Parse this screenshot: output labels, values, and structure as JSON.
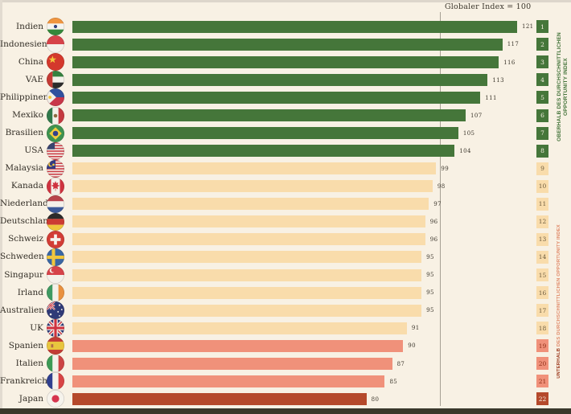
{
  "page": {
    "background_color": "#f8f1e4",
    "footer_bar_color": "#3a382c"
  },
  "reference_line": {
    "label": "Globaler Index = 100",
    "value": 100,
    "color": "#a6a094"
  },
  "side_labels": {
    "above": {
      "line1": "OBERHALB DES DURCHSCHNITTLICHEN",
      "line2": "OPPORTUNITY INDEX",
      "color": "#44743a"
    },
    "below": {
      "bold": "UNTERHALB",
      "rest": " DES DURCHSCHNITTLICHEN OPPORTUNITY INDEX",
      "bold_color": "#9c3a1d",
      "rest_color": "#e08a69"
    }
  },
  "bands": {
    "green": {
      "bar": "#45763a",
      "badge_text": "#f8f1e4"
    },
    "beige": {
      "bar": "#f9dcab",
      "badge_text": "#6d5c3e"
    },
    "salmon": {
      "bar": "#f0917a",
      "badge_text": "#8e2e16"
    },
    "rust": {
      "bar": "#b5492b",
      "badge_text": "#f8f1e4"
    }
  },
  "chart_data": {
    "type": "bar",
    "orientation": "horizontal",
    "title": "",
    "reference": {
      "label": "Globaler Index = 100",
      "value": 100
    },
    "categories": [
      "Indien",
      "Indonesien",
      "China",
      "VAE",
      "Philippinen",
      "Mexiko",
      "Brasilien",
      "USA",
      "Malaysia",
      "Kanada",
      "Niederlande",
      "Deutschland",
      "Schweiz",
      "Schweden",
      "Singapur",
      "Irland",
      "Australien",
      "UK",
      "Spanien",
      "Italien",
      "Frankreich",
      "Japan"
    ],
    "values": [
      121,
      117,
      116,
      113,
      111,
      107,
      105,
      104,
      99,
      98,
      97,
      96,
      96,
      95,
      95,
      95,
      95,
      91,
      90,
      87,
      85,
      80
    ],
    "ranks": [
      1,
      2,
      3,
      4,
      5,
      6,
      7,
      8,
      9,
      10,
      11,
      12,
      13,
      14,
      15,
      16,
      17,
      18,
      19,
      20,
      21,
      22
    ],
    "group_labels": {
      "above": "OBERHALB DES DURCHSCHNITTLICHEN OPPORTUNITY INDEX",
      "below": "UNTERHALB DES DURCHSCHNITTLICHEN OPPORTUNITY INDEX"
    },
    "legend_position": "right-vertical",
    "grid": false
  },
  "rows": [
    {
      "label": "Indien",
      "flag": "india-flag-icon",
      "value": 121,
      "rank": 1,
      "band": "green"
    },
    {
      "label": "Indonesien",
      "flag": "indonesia-flag-icon",
      "value": 117,
      "rank": 2,
      "band": "green"
    },
    {
      "label": "China",
      "flag": "china-flag-icon",
      "value": 116,
      "rank": 3,
      "band": "green"
    },
    {
      "label": "VAE",
      "flag": "uae-flag-icon",
      "value": 113,
      "rank": 4,
      "band": "green"
    },
    {
      "label": "Philippinen",
      "flag": "philippines-flag-icon",
      "value": 111,
      "rank": 5,
      "band": "green"
    },
    {
      "label": "Mexiko",
      "flag": "mexico-flag-icon",
      "value": 107,
      "rank": 6,
      "band": "green"
    },
    {
      "label": "Brasilien",
      "flag": "brazil-flag-icon",
      "value": 105,
      "rank": 7,
      "band": "green"
    },
    {
      "label": "USA",
      "flag": "usa-flag-icon",
      "value": 104,
      "rank": 8,
      "band": "green"
    },
    {
      "label": "Malaysia",
      "flag": "malaysia-flag-icon",
      "value": 99,
      "rank": 9,
      "band": "beige"
    },
    {
      "label": "Kanada",
      "flag": "canada-flag-icon",
      "value": 98,
      "rank": 10,
      "band": "beige"
    },
    {
      "label": "Niederlande",
      "flag": "netherlands-flag-icon",
      "value": 97,
      "rank": 11,
      "band": "beige"
    },
    {
      "label": "Deutschland",
      "flag": "germany-flag-icon",
      "value": 96,
      "rank": 12,
      "band": "beige"
    },
    {
      "label": "Schweiz",
      "flag": "switzerland-flag-icon",
      "value": 96,
      "rank": 13,
      "band": "beige"
    },
    {
      "label": "Schweden",
      "flag": "sweden-flag-icon",
      "value": 95,
      "rank": 14,
      "band": "beige"
    },
    {
      "label": "Singapur",
      "flag": "singapore-flag-icon",
      "value": 95,
      "rank": 15,
      "band": "beige"
    },
    {
      "label": "Irland",
      "flag": "ireland-flag-icon",
      "value": 95,
      "rank": 16,
      "band": "beige"
    },
    {
      "label": "Australien",
      "flag": "australia-flag-icon",
      "value": 95,
      "rank": 17,
      "band": "beige"
    },
    {
      "label": "UK",
      "flag": "uk-flag-icon",
      "value": 91,
      "rank": 18,
      "band": "beige"
    },
    {
      "label": "Spanien",
      "flag": "spain-flag-icon",
      "value": 90,
      "rank": 19,
      "band": "salmon"
    },
    {
      "label": "Italien",
      "flag": "italy-flag-icon",
      "value": 87,
      "rank": 20,
      "band": "salmon"
    },
    {
      "label": "Frankreich",
      "flag": "france-flag-icon",
      "value": 85,
      "rank": 21,
      "band": "salmon"
    },
    {
      "label": "Japan",
      "flag": "japan-flag-icon",
      "value": 80,
      "rank": 22,
      "band": "rust"
    }
  ]
}
